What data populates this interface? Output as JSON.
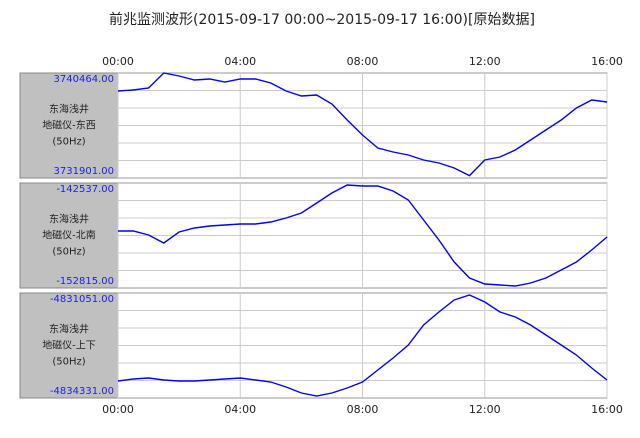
{
  "title": "前兆监测波形(2015-09-17 00:00~2015-09-17 16:00)[原始数据]",
  "chart_data": [
    {
      "type": "line",
      "label": [
        "东海浅井",
        "地磁仪-东西",
        "(50Hz)"
      ],
      "color": "#0000ff",
      "x": [
        0,
        0.5,
        1,
        1.5,
        2,
        2.5,
        3,
        3.5,
        4,
        4.5,
        5,
        5.5,
        6,
        6.5,
        7,
        7.5,
        8,
        8.5,
        9,
        9.5,
        10,
        10.5,
        11,
        11.5,
        12,
        12.5,
        13,
        13.5,
        14,
        14.5,
        15,
        15.5,
        16
      ],
      "values": [
        3738996,
        3739078,
        3739241,
        3740464,
        3740219,
        3739893,
        3739975,
        3739730,
        3739975,
        3739975,
        3739649,
        3738996,
        3738588,
        3738670,
        3737936,
        3736631,
        3735408,
        3734348,
        3734021,
        3733777,
        3733369,
        3733124,
        3732717,
        3732100,
        3733369,
        3733614,
        3734185,
        3735000,
        3735816,
        3736631,
        3737610,
        3738262,
        3738099
      ],
      "xlim": [
        0,
        16
      ],
      "xticks": [
        {
          "value": 0,
          "label": "00:00"
        },
        {
          "value": 4,
          "label": "04:00"
        },
        {
          "value": 8,
          "label": "08:00"
        },
        {
          "value": 12,
          "label": "12:00"
        },
        {
          "value": 16,
          "label": "16:00"
        }
      ],
      "ylim": [
        3731901,
        3740464
      ],
      "yticks": [
        {
          "value": 3740464,
          "label": "3740464.00"
        },
        {
          "value": 3731901,
          "label": "3731901.00"
        }
      ]
    },
    {
      "type": "line",
      "label": [
        "东海浅井",
        "地磁仪-北南",
        "(50Hz)"
      ],
      "color": "#0000ff",
      "x": [
        0,
        0.5,
        1,
        1.5,
        2,
        2.5,
        3,
        3.5,
        4,
        4.5,
        5,
        5.5,
        6,
        6.5,
        7,
        7.5,
        8,
        8.5,
        9,
        9.5,
        10,
        10.5,
        11,
        11.5,
        12,
        12.5,
        13,
        13.5,
        14,
        14.5,
        15,
        15.5,
        16
      ],
      "values": [
        -147236,
        -147236,
        -147628,
        -148411,
        -147334,
        -146943,
        -146747,
        -146649,
        -146551,
        -146551,
        -146355,
        -145964,
        -145474,
        -144495,
        -143516,
        -142733,
        -142831,
        -142831,
        -143320,
        -144201,
        -146159,
        -148117,
        -150271,
        -151838,
        -152425,
        -152523,
        -152621,
        -152327,
        -151838,
        -151054,
        -150271,
        -149096,
        -147824
      ],
      "xlim": [
        0,
        16
      ],
      "xticks": [
        {
          "value": 0,
          "label": "00:00"
        },
        {
          "value": 4,
          "label": "04:00"
        },
        {
          "value": 8,
          "label": "08:00"
        },
        {
          "value": 12,
          "label": "12:00"
        },
        {
          "value": 16,
          "label": "16:00"
        }
      ],
      "ylim": [
        -152815,
        -142537
      ],
      "yticks": [
        {
          "value": -142537,
          "label": "-142537.00"
        },
        {
          "value": -152815,
          "label": "-152815.00"
        }
      ]
    },
    {
      "type": "line",
      "label": [
        "东海浅井",
        "地磁仪-上下",
        "(50Hz)"
      ],
      "color": "#0000ff",
      "x": [
        0,
        0.5,
        1,
        1.5,
        2,
        2.5,
        3,
        3.5,
        4,
        4.5,
        5,
        5.5,
        6,
        6.5,
        7,
        7.5,
        8,
        8.5,
        9,
        9.5,
        10,
        10.5,
        11,
        11.5,
        12,
        12.5,
        13,
        13.5,
        14,
        14.5,
        15,
        15.5,
        16
      ],
      "values": [
        -4833800,
        -4833738,
        -4833706,
        -4833769,
        -4833800,
        -4833800,
        -4833769,
        -4833738,
        -4833706,
        -4833769,
        -4833831,
        -4833988,
        -4834175,
        -4834269,
        -4834175,
        -4834019,
        -4833831,
        -4833456,
        -4833082,
        -4832675,
        -4832051,
        -4831645,
        -4831270,
        -4831113,
        -4831332,
        -4831645,
        -4831801,
        -4832051,
        -4832363,
        -4832675,
        -4832988,
        -4833394,
        -4833769
      ],
      "xlim": [
        0,
        16
      ],
      "xticks": [
        {
          "value": 0,
          "label": "00:00"
        },
        {
          "value": 4,
          "label": "04:00"
        },
        {
          "value": 8,
          "label": "08:00"
        },
        {
          "value": 12,
          "label": "12:00"
        },
        {
          "value": 16,
          "label": "16:00"
        }
      ],
      "ylim": [
        -4834331,
        -4831051
      ],
      "yticks": [
        {
          "value": -4831051,
          "label": "-4831051.00"
        },
        {
          "value": -4834331,
          "label": "-4834331.00"
        }
      ]
    }
  ]
}
